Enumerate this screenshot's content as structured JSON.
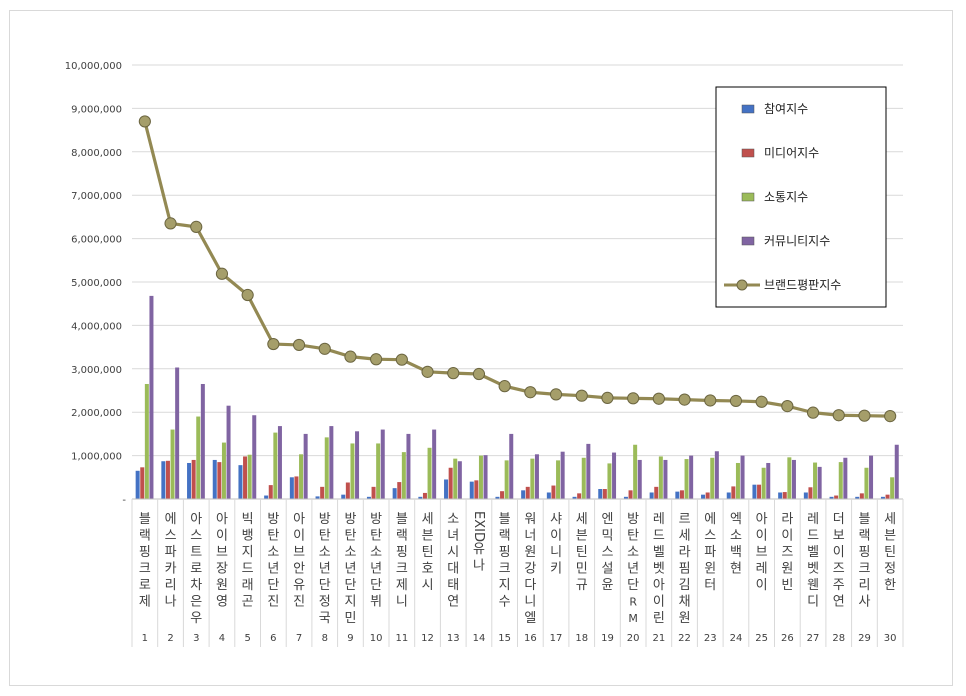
{
  "chart_data": {
    "type": "bar",
    "title": "",
    "xlabel": "",
    "ylabel": "",
    "ylim": [
      0,
      10000000
    ],
    "yticks": [
      "-",
      "1,000,000",
      "2,000,000",
      "3,000,000",
      "4,000,000",
      "5,000,000",
      "6,000,000",
      "7,000,000",
      "8,000,000",
      "9,000,000",
      "10,000,000"
    ],
    "grid": true,
    "legend_position": "top-right",
    "categories": [
      "블랙핑크 로제",
      "에스파 카리나",
      "아스트로 차은우",
      "아이브 장원영",
      "빅뱅 지드래곤",
      "방탄소년단 진",
      "아이브 안유진",
      "방탄소년단 정국",
      "방탄소년단 지민",
      "방탄소년단 뷔",
      "블랙핑크 제니",
      "세븐틴 호시",
      "소녀시대 태연",
      "EXID 유나",
      "블랙핑크 지수",
      "워너원 강다니엘",
      "샤이니 키",
      "세븐틴 민규",
      "엔믹스 설윤",
      "방탄소년단 RM",
      "레드벨벳 아이린",
      "르세라핌 김채원",
      "에스파 윈터",
      "엑소 백현",
      "아이브 레이",
      "라이즈 원빈",
      "레드벨벳 웬디",
      "더보이즈 주연",
      "블랙핑크 리사",
      "세븐틴 정한"
    ],
    "category_labels": [
      "블랙핑크로제",
      "에스파카리나",
      "아스트로차은우",
      "아이브장원영",
      "빅뱅지드래곤",
      "방탄소년단진",
      "아이브안유진",
      "방탄소년단정국",
      "방탄소년단지민",
      "방탄소년단뷔",
      "블랙핑크제니",
      "세븐틴호시",
      "소녀시대태연",
      "EXID유나",
      "블랙핑크지수",
      "워너원강다니엘",
      "샤이니키",
      "세븐틴민규",
      "엔믹스설윤",
      "방탄소년단RM",
      "레드벨벳아이린",
      "르세라핌김채원",
      "에스파윈터",
      "엑소백현",
      "아이브레이",
      "라이즈원빈",
      "레드벨벳웬디",
      "더보이즈주연",
      "블랙핑크리사",
      "세븐틴정한"
    ],
    "ranks": [
      "1",
      "2",
      "3",
      "4",
      "5",
      "6",
      "7",
      "8",
      "9",
      "10",
      "11",
      "12",
      "13",
      "14",
      "15",
      "16",
      "17",
      "18",
      "19",
      "20",
      "21",
      "22",
      "23",
      "24",
      "25",
      "26",
      "27",
      "28",
      "29",
      "30"
    ],
    "series": [
      {
        "name": "참여지수",
        "type": "bar",
        "color": "#4472C4",
        "values": [
          650000,
          870000,
          830000,
          900000,
          780000,
          80000,
          500000,
          60000,
          100000,
          50000,
          250000,
          50000,
          450000,
          400000,
          50000,
          200000,
          150000,
          50000,
          230000,
          50000,
          150000,
          170000,
          100000,
          150000,
          330000,
          150000,
          150000,
          50000,
          50000,
          50000
        ]
      },
      {
        "name": "미디어지수",
        "type": "bar",
        "color": "#C0504D",
        "values": [
          730000,
          880000,
          900000,
          850000,
          980000,
          320000,
          520000,
          280000,
          380000,
          280000,
          390000,
          140000,
          720000,
          430000,
          180000,
          280000,
          310000,
          130000,
          230000,
          200000,
          280000,
          200000,
          150000,
          290000,
          330000,
          160000,
          270000,
          80000,
          130000,
          100000
        ]
      },
      {
        "name": "소통지수",
        "type": "bar",
        "color": "#9BBB59",
        "values": [
          2650000,
          1600000,
          1900000,
          1300000,
          1020000,
          1530000,
          1030000,
          1420000,
          1280000,
          1280000,
          1080000,
          1180000,
          930000,
          1000000,
          890000,
          930000,
          890000,
          950000,
          820000,
          1250000,
          980000,
          920000,
          950000,
          830000,
          720000,
          960000,
          840000,
          850000,
          720000,
          500000
        ]
      },
      {
        "name": "커뮤니티지수",
        "type": "bar",
        "color": "#8064A2",
        "values": [
          4680000,
          3030000,
          2650000,
          2150000,
          1930000,
          1680000,
          1500000,
          1680000,
          1560000,
          1600000,
          1500000,
          1600000,
          870000,
          1010000,
          1500000,
          1030000,
          1090000,
          1270000,
          1070000,
          900000,
          900000,
          1000000,
          1100000,
          1000000,
          830000,
          900000,
          740000,
          950000,
          1000000,
          1250000
        ]
      },
      {
        "name": "브랜드평판지수",
        "type": "line",
        "color": "#938953",
        "values": [
          8700000,
          6350000,
          6270000,
          5190000,
          4700000,
          3570000,
          3550000,
          3460000,
          3280000,
          3220000,
          3210000,
          2930000,
          2900000,
          2880000,
          2600000,
          2460000,
          2410000,
          2380000,
          2330000,
          2320000,
          2310000,
          2290000,
          2270000,
          2260000,
          2240000,
          2140000,
          1990000,
          1930000,
          1920000,
          1910000
        ]
      }
    ]
  }
}
